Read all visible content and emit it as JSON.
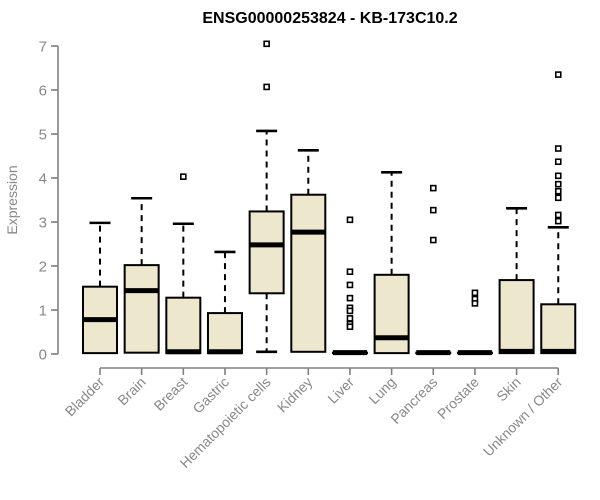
{
  "chart_data": {
    "type": "boxplot",
    "title": "ENSG00000253824 - KB-173C10.2",
    "ylabel": "Expression",
    "xlabel": "",
    "ylim": [
      0,
      7
    ],
    "yticks": [
      0,
      1,
      2,
      3,
      4,
      5,
      6,
      7
    ],
    "grid": false,
    "legend": null,
    "categories": [
      "Bladder",
      "Brain",
      "Breast",
      "Gastric",
      "Hematopoietic cells",
      "Kidney",
      "Liver",
      "Lung",
      "Pancreas",
      "Prostate",
      "Skin",
      "Unknown / Other"
    ],
    "series": [
      {
        "name": "Bladder",
        "whisker_low": 0.02,
        "q1": 0.02,
        "median": 0.78,
        "q3": 1.53,
        "whisker_high": 2.98,
        "outliers": []
      },
      {
        "name": "Brain",
        "whisker_low": 0.03,
        "q1": 0.03,
        "median": 1.44,
        "q3": 2.02,
        "whisker_high": 3.54,
        "outliers": []
      },
      {
        "name": "Breast",
        "whisker_low": 0.02,
        "q1": 0.02,
        "median": 0.05,
        "q3": 1.28,
        "whisker_high": 2.96,
        "outliers": [
          4.03
        ]
      },
      {
        "name": "Gastric",
        "whisker_low": 0.02,
        "q1": 0.02,
        "median": 0.05,
        "q3": 0.93,
        "whisker_high": 2.32,
        "outliers": []
      },
      {
        "name": "Hematopoietic cells",
        "whisker_low": 0.05,
        "q1": 1.38,
        "median": 2.48,
        "q3": 3.24,
        "whisker_high": 5.07,
        "outliers": [
          7.05,
          6.07
        ]
      },
      {
        "name": "Kidney",
        "whisker_low": 0.05,
        "q1": 0.05,
        "median": 2.77,
        "q3": 3.62,
        "whisker_high": 4.63,
        "outliers": []
      },
      {
        "name": "Liver",
        "whisker_low": 0.03,
        "q1": 0.03,
        "median": 0.03,
        "q3": 0.03,
        "whisker_high": 0.03,
        "outliers": [
          3.05,
          1.87,
          1.57,
          1.27,
          1.05,
          0.98,
          0.81,
          0.68,
          0.62
        ]
      },
      {
        "name": "Lung",
        "whisker_low": 0.02,
        "q1": 0.02,
        "median": 0.37,
        "q3": 1.8,
        "whisker_high": 4.13,
        "outliers": []
      },
      {
        "name": "Pancreas",
        "whisker_low": 0.03,
        "q1": 0.03,
        "median": 0.03,
        "q3": 0.03,
        "whisker_high": 0.03,
        "outliers": [
          3.77,
          3.27,
          2.59
        ]
      },
      {
        "name": "Prostate",
        "whisker_low": 0.03,
        "q1": 0.03,
        "median": 0.03,
        "q3": 0.03,
        "whisker_high": 0.03,
        "outliers": [
          1.39,
          1.25,
          1.15
        ]
      },
      {
        "name": "Skin",
        "whisker_low": 0.02,
        "q1": 0.02,
        "median": 0.06,
        "q3": 1.68,
        "whisker_high": 3.31,
        "outliers": []
      },
      {
        "name": "Unknown / Other",
        "whisker_low": 0.02,
        "q1": 0.02,
        "median": 0.06,
        "q3": 1.13,
        "whisker_high": 2.88,
        "outliers": [
          6.35,
          4.67,
          4.37,
          4.05,
          3.86,
          3.7,
          3.55,
          3.16,
          3.02
        ]
      }
    ]
  },
  "colors": {
    "box_fill": "#ECE7CD",
    "box_border": "#000000",
    "median": "#000000",
    "whisker": "#000000",
    "outlier_stroke": "#000000",
    "outlier_fill": "#FFFFFF",
    "axis_line": "#808080",
    "axis_text": "#888888",
    "title_text": "#000000",
    "background": "#FFFFFF"
  }
}
